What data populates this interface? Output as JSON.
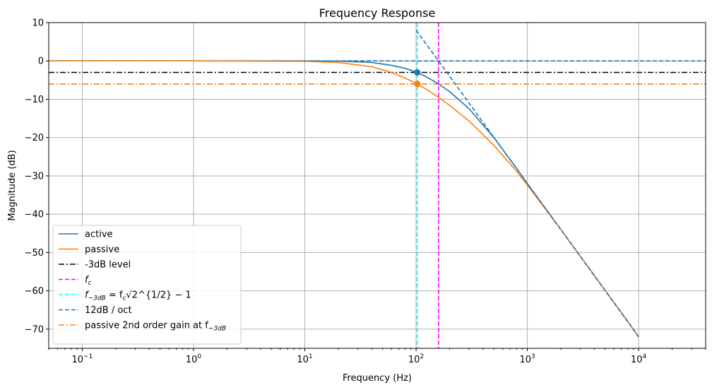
{
  "chart_data": {
    "type": "line",
    "title": "Frequency Response",
    "xlabel": "Frequency (Hz)",
    "ylabel": "Magnitude (dB)",
    "xscale": "log",
    "xlim": [
      0.05,
      40000
    ],
    "ylim": [
      -75,
      10
    ],
    "grid": true,
    "legend_position": "lower-left",
    "x_ticks": [
      {
        "value": 0.1,
        "base": "10",
        "exp": "−1"
      },
      {
        "value": 1,
        "base": "10",
        "exp": "0"
      },
      {
        "value": 10,
        "base": "10",
        "exp": "1"
      },
      {
        "value": 100,
        "base": "10",
        "exp": "2"
      },
      {
        "value": 1000,
        "base": "10",
        "exp": "3"
      },
      {
        "value": 10000,
        "base": "10",
        "exp": "4"
      }
    ],
    "y_ticks": [
      {
        "value": 10,
        "label": "10"
      },
      {
        "value": 0,
        "label": "0"
      },
      {
        "value": -10,
        "label": "−10"
      },
      {
        "value": -20,
        "label": "−20"
      },
      {
        "value": -30,
        "label": "−30"
      },
      {
        "value": -40,
        "label": "−40"
      },
      {
        "value": -50,
        "label": "−50"
      },
      {
        "value": -60,
        "label": "−60"
      },
      {
        "value": -70,
        "label": "−70"
      }
    ],
    "params": {
      "fc": 159.2,
      "f_3dB": 102.4,
      "level_3dB": -3.0,
      "passive_gain_at_f3dB": -6.0
    },
    "series": [
      {
        "name": "active",
        "color": "#1f77b4",
        "style": "solid",
        "x": [
          0.05,
          1,
          10,
          20,
          40,
          60,
          80,
          102.4,
          130,
          159.2,
          200,
          300,
          500,
          800,
          1000,
          2000,
          4000,
          8000,
          10000
        ],
        "y": [
          0.0,
          0.0,
          -0.0,
          -0.03,
          -0.4,
          -1.14,
          -1.95,
          -3.0,
          -4.5,
          -6.0,
          -8.0,
          -12.5,
          -20.0,
          -28.0,
          -32.0,
          -44.0,
          -56.0,
          -68.0,
          -72.0
        ]
      },
      {
        "name": "passive",
        "color": "#ff7f0e",
        "style": "solid",
        "x": [
          0.05,
          1,
          10,
          20,
          40,
          60,
          80,
          102.4,
          130,
          159.2,
          200,
          300,
          500,
          800,
          1000,
          2000,
          4000,
          8000,
          10000
        ],
        "y": [
          0.0,
          -0.0,
          -0.1,
          -0.4,
          -1.5,
          -3.0,
          -4.5,
          -6.0,
          -7.8,
          -9.5,
          -11.6,
          -15.7,
          -22.0,
          -28.8,
          -32.4,
          -44.0,
          -56.0,
          -68.0,
          -72.0
        ]
      },
      {
        "name": "-3dB level",
        "color": "#000000",
        "style": "dashdot",
        "hline": -3
      },
      {
        "name": "f_c",
        "color": "#ff00ff",
        "style": "dashed",
        "vline": 159.2
      },
      {
        "name": "f_-3dB",
        "color": "#00ffff",
        "style": "dashed",
        "vline": 102.4
      },
      {
        "name": "12dB / oct",
        "color": "#1f77b4",
        "style": "dashed",
        "x": [
          100,
          159.2,
          1000,
          10000
        ],
        "y": [
          8.0,
          0.0,
          -32.0,
          -72.0
        ],
        "hline": 0
      },
      {
        "name": "passive 2nd order gain at f_-3dB",
        "color": "#ff7f0e",
        "style": "dashdot",
        "hline": -6
      }
    ],
    "markers": [
      {
        "series": "active",
        "x": 102.4,
        "y": -3.0,
        "color": "#1f77b4"
      },
      {
        "series": "passive",
        "x": 102.4,
        "y": -6.0,
        "color": "#ff7f0e"
      }
    ],
    "legend": [
      {
        "label": "active",
        "color": "#1f77b4",
        "style": "solid"
      },
      {
        "label": "passive",
        "color": "#ff7f0e",
        "style": "solid"
      },
      {
        "label": "-3dB level",
        "color": "#000000",
        "style": "dashdot"
      },
      {
        "label": "f",
        "sub": "c",
        "color": "#ff00ff",
        "style": "dashed"
      },
      {
        "label": "f",
        "sub": "−3dB",
        "eq": " = f",
        "eqsub": "c",
        "sqrt": "√2^{1/2} − 1",
        "color": "#00ffff",
        "style": "dashed"
      },
      {
        "label": "12dB / oct",
        "color": "#1f77b4",
        "style": "dashed"
      },
      {
        "label": "passive 2nd order gain at f",
        "sub": "−3dB",
        "color": "#ff7f0e",
        "style": "dashdot"
      }
    ]
  }
}
